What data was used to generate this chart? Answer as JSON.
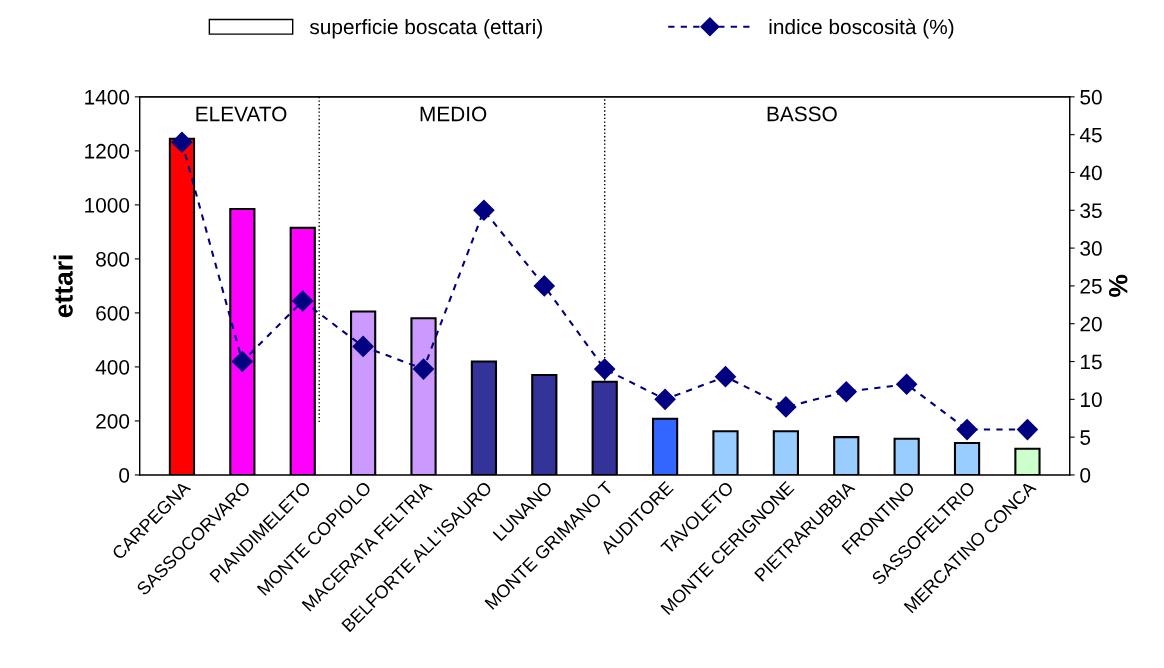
{
  "chart_data": {
    "type": "bar",
    "ylabel": "ettari",
    "y2label": "%",
    "categories": [
      "CARPEGNA",
      "SASSOCORVARO",
      "PIANDIMELETO",
      "MONTE COPIOLO",
      "MACERATA FELTRIA",
      "BELFORTE ALL'ISAURO",
      "LUNANO",
      "MONTE GRIMANO T",
      "AUDITORE",
      "TAVOLETO",
      "MONTE CERIGNONE",
      "PIETRARUBBIA",
      "FRONTINO",
      "SASSOFELTRIO",
      "MERCATINO CONCA"
    ],
    "series": [
      {
        "name": "superficie boscata (ettari)",
        "color": "#ffffff",
        "colors": [
          "#ff0000",
          "#ff00ff",
          "#ff00ff",
          "#cc99ff",
          "#cc99ff",
          "#333399",
          "#333399",
          "#333399",
          "#3366ff",
          "#99ccff",
          "#99ccff",
          "#99ccff",
          "#99ccff",
          "#99ccff",
          "#ccffcc"
        ],
        "values": [
          1245,
          985,
          915,
          605,
          580,
          420,
          370,
          345,
          208,
          162,
          162,
          140,
          134,
          118,
          97
        ]
      },
      {
        "name": "indice boscosità (%)",
        "type": "line",
        "axis": "y2",
        "color": "#000080",
        "marker": "diamond",
        "line_style": "dashed",
        "values": [
          44,
          15,
          23,
          17,
          14,
          35,
          25,
          14,
          10,
          13,
          9,
          11,
          12,
          6,
          6
        ]
      }
    ],
    "ylim": [
      0,
      1400
    ],
    "yticks": [
      0,
      200,
      400,
      600,
      800,
      1000,
      1200,
      1400
    ],
    "y2lim": [
      0,
      50
    ],
    "y2ticks": [
      0,
      5,
      10,
      15,
      20,
      25,
      30,
      35,
      40,
      45,
      50
    ],
    "annotations": [
      "ELEVATO",
      "MEDIO",
      "BASSO"
    ],
    "legend": "top"
  }
}
